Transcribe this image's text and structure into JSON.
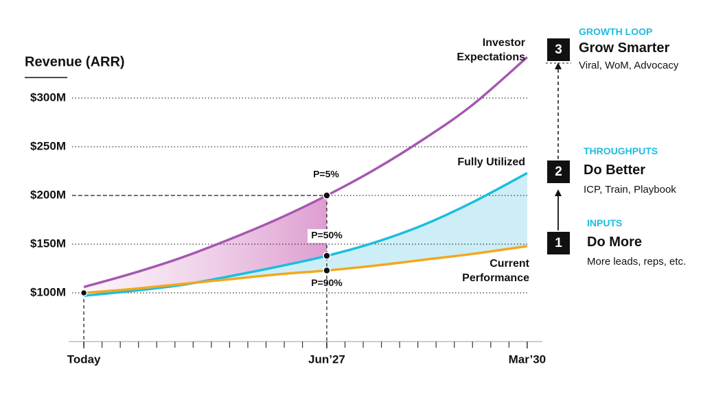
{
  "chart_data": {
    "type": "line",
    "y_axis_label": "Revenue (ARR)",
    "x": [
      0,
      8,
      16,
      24,
      32,
      40,
      48,
      56,
      64,
      73
    ],
    "xlim": [
      -2.5,
      75.5
    ],
    "xticks": [
      {
        "value": 0,
        "label": "Today"
      },
      {
        "value": 40,
        "label": "Jun’27"
      },
      {
        "value": 73,
        "label": "Mar’30"
      }
    ],
    "xticks_minor": [
      3,
      6,
      9,
      12,
      15,
      18,
      21,
      24,
      27,
      30,
      33,
      36,
      43,
      46,
      49,
      52,
      55,
      58,
      61,
      64,
      67,
      70
    ],
    "ylim": [
      50,
      350
    ],
    "yticks": [
      {
        "value": 100,
        "label": "$100M"
      },
      {
        "value": 150,
        "label": "$150M"
      },
      {
        "value": 200,
        "label": "$200M"
      },
      {
        "value": 250,
        "label": "$250M"
      },
      {
        "value": 300,
        "label": "$300M"
      }
    ],
    "grid": true,
    "series": [
      {
        "name": "Investor Expectations",
        "color": "#a557b0",
        "values": [
          106,
          120,
          136,
          155,
          176,
          200,
          227,
          258,
          293,
          342
        ]
      },
      {
        "name": "Fully Utilized",
        "color": "#1bbde0",
        "values": [
          97,
          102,
          108,
          117,
          127,
          138,
          152,
          170,
          193,
          223
        ]
      },
      {
        "name": "Current Performance",
        "color": "#f2a81d",
        "values": [
          100,
          104,
          109,
          114,
          119,
          123,
          128,
          134,
          140,
          148
        ]
      }
    ],
    "annotations": [
      {
        "text": "P=5%",
        "series": 0,
        "index": 5
      },
      {
        "text": "P=50%",
        "series": 1,
        "index": 5
      },
      {
        "text": "P=90%",
        "series": 2,
        "index": 5
      }
    ]
  },
  "steps": [
    {
      "number": "3",
      "category": "GROWTH LOOP",
      "title": "Grow Smarter",
      "subtitle": "Viral, WoM, Advocacy"
    },
    {
      "number": "2",
      "category": "THROUGHPUTS",
      "title": "Do Better",
      "subtitle": "ICP, Train, Playbook"
    },
    {
      "number": "1",
      "category": "INPUTS",
      "title": "Do More",
      "subtitle": "More leads, reps, etc."
    }
  ]
}
